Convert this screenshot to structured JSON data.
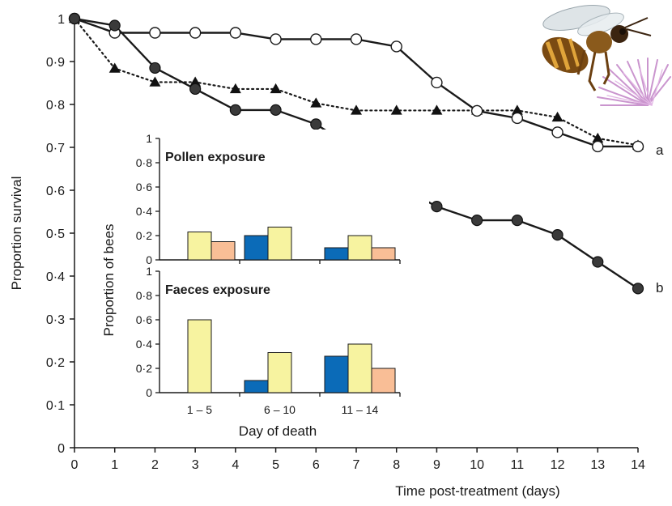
{
  "chart_data": [
    {
      "type": "line",
      "xlabel": "Time post-treatment (days)",
      "ylabel": "Proportion survival",
      "xlim": [
        0,
        14
      ],
      "ylim": [
        0,
        1
      ],
      "x_ticks": [
        "0",
        "1",
        "2",
        "3",
        "4",
        "5",
        "6",
        "7",
        "8",
        "9",
        "10",
        "11",
        "12",
        "13",
        "14"
      ],
      "y_ticks": [
        "0",
        "0·1",
        "0·2",
        "0·3",
        "0·4",
        "0·5",
        "0·6",
        "0·7",
        "0·8",
        "0·9",
        "1"
      ],
      "x": [
        0,
        1,
        2,
        3,
        4,
        5,
        6,
        7,
        8,
        9,
        10,
        11,
        12,
        13,
        14
      ],
      "series": [
        {
          "marker": "open-circle",
          "line": "solid",
          "values": [
            1,
            0.967,
            0.967,
            0.967,
            0.967,
            0.952,
            0.952,
            0.952,
            0.935,
            0.851,
            0.785,
            0.768,
            0.735,
            0.702,
            0.702
          ],
          "group_label": "a"
        },
        {
          "marker": "filled-triangle",
          "line": "dotted",
          "values": [
            1,
            0.884,
            0.852,
            0.852,
            0.836,
            0.836,
            0.803,
            0.786,
            0.786,
            0.786,
            0.786,
            0.786,
            0.77,
            0.721,
            0.705
          ],
          "group_label": ""
        },
        {
          "marker": "filled-circle",
          "line": "solid",
          "values": [
            1,
            0.984,
            0.885,
            0.836,
            0.787,
            0.787,
            0.754,
            0.694,
            0.613,
            0.562,
            0.53,
            0.53,
            0.496,
            0.433,
            0.371
          ],
          "group_label": "b"
        }
      ],
      "grid": false
    },
    {
      "type": "bar",
      "title": "Pollen exposure",
      "ylabel": "Proportion of bees",
      "ylim": [
        0,
        1
      ],
      "y_ticks": [
        "0",
        "0·2",
        "0·4",
        "0·6",
        "0·8",
        "1"
      ],
      "categories": [
        "1 – 5",
        "6 – 10",
        "11 – 14"
      ],
      "series": [
        {
          "color": "#0b6bb8",
          "values": [
            0,
            0.2,
            0.1
          ]
        },
        {
          "color": "#f7f3a0",
          "values": [
            0.23,
            0.27,
            0.2
          ]
        },
        {
          "color": "#f9be96",
          "values": [
            0.15,
            0,
            0.1
          ]
        }
      ]
    },
    {
      "type": "bar",
      "title": "Faeces exposure",
      "xlabel": "Day of death",
      "ylim": [
        0,
        1
      ],
      "y_ticks": [
        "0",
        "0·2",
        "0·4",
        "0·6",
        "0·8",
        "1"
      ],
      "categories": [
        "1 – 5",
        "6 – 10",
        "11 – 14"
      ],
      "series": [
        {
          "color": "#0b6bb8",
          "values": [
            0,
            0.1,
            0.3
          ]
        },
        {
          "color": "#f7f3a0",
          "values": [
            0.6,
            0.33,
            0.4
          ]
        },
        {
          "color": "#f9be96",
          "values": [
            0,
            0,
            0.2
          ]
        }
      ]
    }
  ],
  "decoration": {
    "photo": "honeybee-on-flower-photo"
  }
}
